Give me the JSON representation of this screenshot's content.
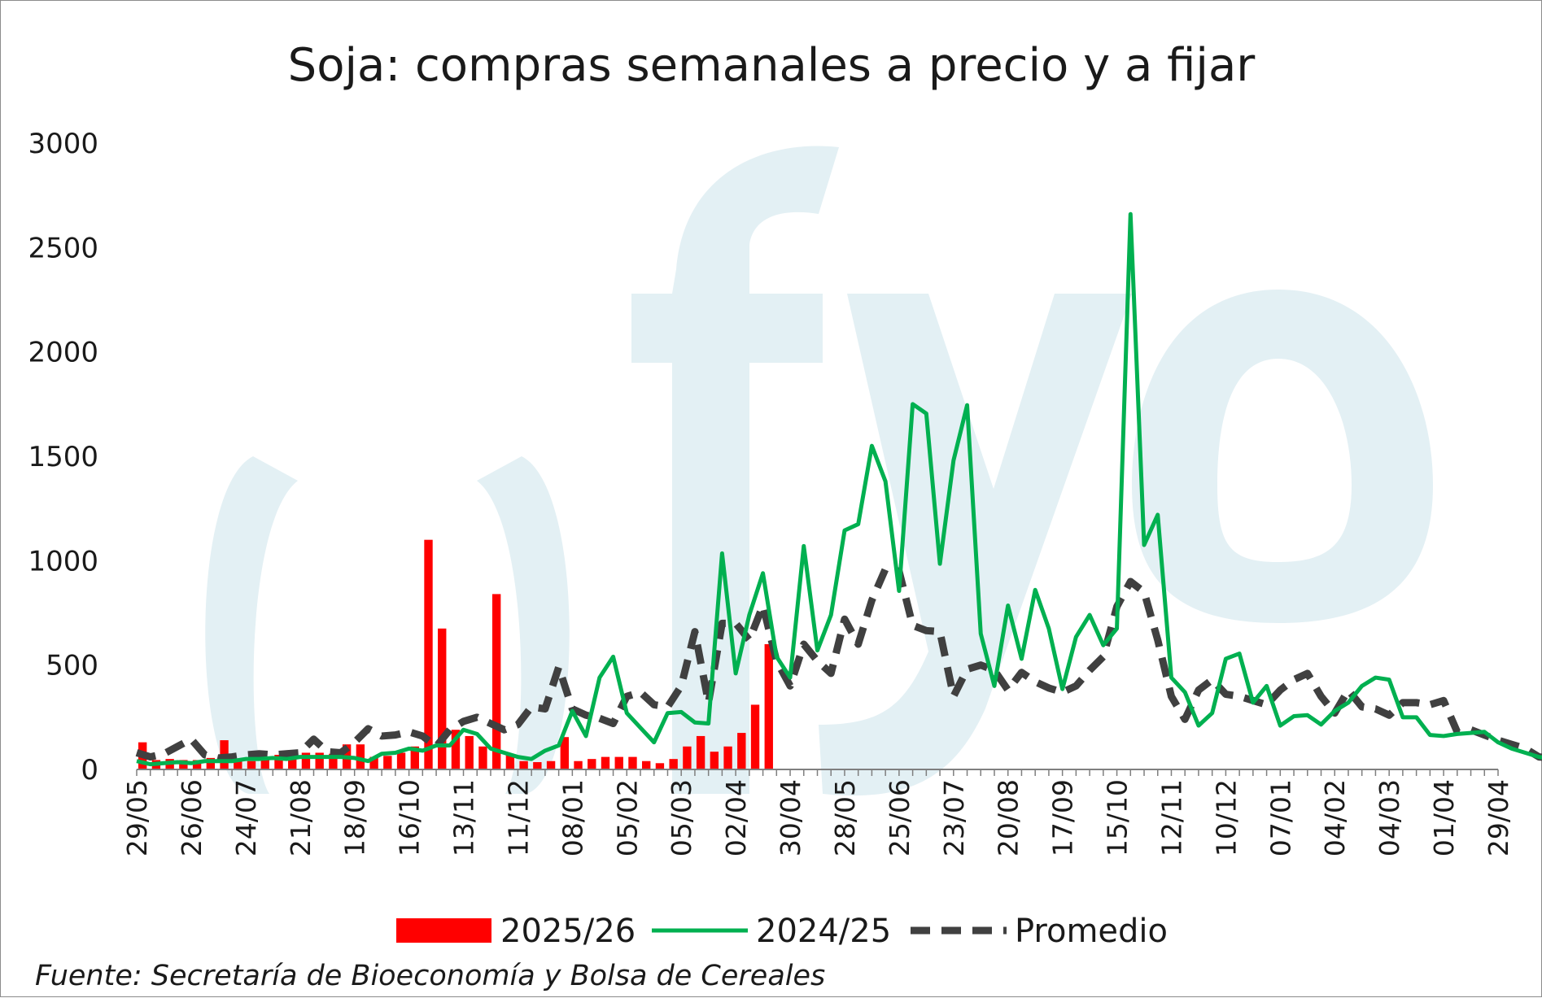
{
  "chart_data": {
    "type": "bar",
    "title": "Soja: compras semanales a precio y a fijar",
    "source": "Fuente: Secretaría de Bioeconomía y Bolsa de Cereales",
    "watermark": "fyo",
    "ylim": [
      0,
      3000
    ],
    "yticks": [
      0,
      500,
      1000,
      1500,
      2000,
      2500,
      3000
    ],
    "xtick_labels": [
      "29/05",
      "26/06",
      "24/07",
      "21/08",
      "18/09",
      "16/10",
      "13/11",
      "11/12",
      "08/01",
      "05/02",
      "05/03",
      "02/04",
      "30/04",
      "28/05",
      "25/06",
      "23/07",
      "20/08",
      "17/09",
      "15/10",
      "12/11",
      "10/12",
      "07/01",
      "04/02",
      "04/03",
      "01/04",
      "29/04"
    ],
    "weeks_per_tick": 4,
    "colors": {
      "bars": "#ff0000",
      "line_2024": "#00b050",
      "promedio": "#404040",
      "watermark": "#e3f0f4"
    },
    "legend": [
      "2025/26",
      "2024/25",
      "Promedio"
    ],
    "series": [
      {
        "name": "2025/26",
        "kind": "bar",
        "values": [
          130,
          45,
          50,
          45,
          45,
          55,
          140,
          45,
          40,
          60,
          70,
          75,
          80,
          80,
          75,
          120,
          120,
          60,
          65,
          80,
          110,
          1100,
          675,
          190,
          160,
          110,
          840,
          75,
          40,
          35,
          40,
          155,
          40,
          50,
          60,
          60,
          60,
          40,
          30,
          50,
          110,
          160,
          85,
          110,
          175,
          310,
          600
        ]
      },
      {
        "name": "2024/25",
        "kind": "line",
        "values": [
          40,
          25,
          30,
          35,
          30,
          40,
          40,
          40,
          50,
          50,
          55,
          50,
          60,
          60,
          60,
          60,
          55,
          40,
          75,
          80,
          100,
          90,
          115,
          115,
          190,
          170,
          100,
          80,
          60,
          50,
          90,
          115,
          280,
          160,
          440,
          540,
          270,
          200,
          130,
          270,
          275,
          225,
          220,
          1035,
          460,
          740,
          940,
          540,
          440,
          1070,
          570,
          740,
          1145,
          1175,
          1550,
          1380,
          855,
          1750,
          1705,
          985,
          1480,
          1745,
          650,
          400,
          785,
          530,
          860,
          675,
          385,
          635,
          740,
          595,
          675,
          2660,
          1075,
          1220,
          440,
          370,
          210,
          270,
          530,
          555,
          320,
          400,
          210,
          255,
          260,
          215,
          280,
          320,
          400,
          440,
          430,
          250,
          250,
          165,
          160,
          170,
          175,
          180,
          130,
          100,
          80,
          60,
          50
        ]
      },
      {
        "name": "Promedio",
        "kind": "line",
        "values": [
          80,
          60,
          75,
          110,
          145,
          70,
          55,
          60,
          70,
          75,
          70,
          75,
          80,
          145,
          85,
          80,
          130,
          195,
          160,
          165,
          180,
          160,
          110,
          190,
          230,
          250,
          220,
          190,
          215,
          300,
          290,
          490,
          290,
          260,
          245,
          220,
          350,
          370,
          310,
          300,
          400,
          660,
          320,
          700,
          700,
          620,
          785,
          520,
          400,
          600,
          520,
          460,
          720,
          600,
          810,
          960,
          950,
          690,
          665,
          660,
          350,
          480,
          500,
          475,
          380,
          465,
          420,
          390,
          370,
          400,
          475,
          540,
          780,
          900,
          850,
          620,
          350,
          240,
          380,
          430,
          360,
          350,
          330,
          310,
          380,
          430,
          460,
          350,
          270,
          380,
          300,
          290,
          260,
          320,
          320,
          310,
          330,
          180,
          190,
          165,
          140,
          120,
          100,
          60,
          55,
          50
        ]
      }
    ]
  }
}
